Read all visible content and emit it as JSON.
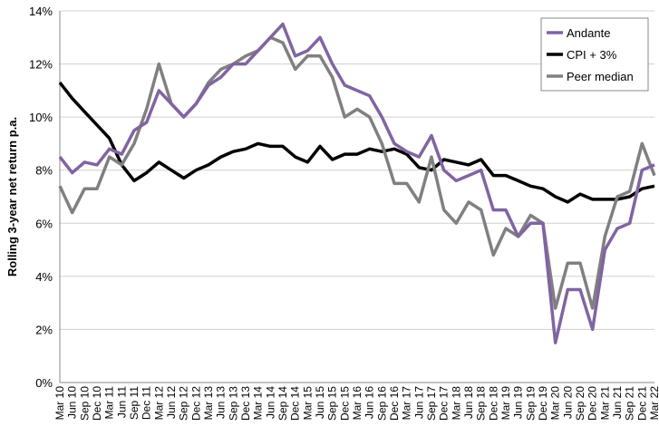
{
  "chart_data": {
    "type": "line",
    "y_label": "Rolling 3-year net return p.a.",
    "categories": [
      "Mar 10",
      "Jun 10",
      "Sep 10",
      "Dec 10",
      "Mar 11",
      "Jun 11",
      "Sep 11",
      "Dec 11",
      "Mar 12",
      "Jun 12",
      "Sep 12",
      "Dec 12",
      "Mar 13",
      "Jun 13",
      "Sep 13",
      "Dec 13",
      "Mar 14",
      "Jun 14",
      "Sep 14",
      "Dec 14",
      "Mar 15",
      "Jun 15",
      "Sep 15",
      "Dec 15",
      "Mar 16",
      "Jun 16",
      "Sep 16",
      "Dec 16",
      "Mar 17",
      "Jun 17",
      "Sep 17",
      "Dec 17",
      "Mar 18",
      "Jun 18",
      "Sep 18",
      "Dec 18",
      "Mar 19",
      "Jun 19",
      "Sep 19",
      "Dec 19",
      "Mar 20",
      "Jun 20",
      "Sep 20",
      "Dec 20",
      "Mar 21",
      "Jun 21",
      "Sep 21",
      "Dec 21",
      "Mar 22"
    ],
    "series": [
      {
        "name": "Andante",
        "color": "#8064a2",
        "values": [
          8.5,
          7.9,
          8.3,
          8.2,
          8.8,
          8.6,
          9.5,
          9.8,
          11.0,
          10.5,
          10.0,
          10.5,
          11.2,
          11.5,
          12.0,
          12.0,
          12.5,
          13.0,
          13.5,
          12.3,
          12.5,
          13.0,
          12.0,
          11.2,
          11.0,
          10.8,
          10.0,
          9.0,
          8.7,
          8.5,
          9.3,
          8.0,
          7.6,
          7.8,
          8.0,
          6.5,
          6.5,
          5.5,
          6.0,
          6.0,
          1.5,
          3.5,
          3.5,
          2.0,
          5.0,
          5.8,
          6.0,
          8.0,
          8.2
        ]
      },
      {
        "name": "CPI + 3%",
        "color": "#000000",
        "values": [
          11.3,
          10.7,
          10.2,
          9.7,
          9.2,
          8.2,
          7.6,
          7.9,
          8.3,
          8.0,
          7.7,
          8.0,
          8.2,
          8.5,
          8.7,
          8.8,
          9.0,
          8.9,
          8.9,
          8.5,
          8.3,
          8.9,
          8.4,
          8.6,
          8.6,
          8.8,
          8.7,
          8.8,
          8.6,
          8.1,
          8.0,
          8.4,
          8.3,
          8.2,
          8.4,
          7.8,
          7.8,
          7.6,
          7.4,
          7.3,
          7.0,
          6.8,
          7.1,
          6.9,
          6.9,
          6.9,
          7.0,
          7.3,
          7.4
        ]
      },
      {
        "name": "Peer median",
        "color": "#808080",
        "values": [
          7.4,
          6.4,
          7.3,
          7.3,
          8.5,
          8.2,
          9.0,
          10.3,
          12.0,
          10.5,
          10.0,
          10.5,
          11.3,
          11.8,
          12.0,
          12.3,
          12.5,
          13.0,
          12.8,
          11.8,
          12.3,
          12.3,
          11.5,
          10.0,
          10.3,
          10.0,
          9.0,
          7.5,
          7.5,
          6.8,
          8.5,
          6.5,
          6.0,
          6.8,
          6.5,
          4.8,
          5.8,
          5.5,
          6.3,
          6.0,
          2.8,
          4.5,
          4.5,
          2.8,
          5.5,
          7.0,
          7.2,
          9.0,
          7.8
        ]
      }
    ],
    "ylim": [
      0,
      14
    ],
    "yticks": [
      {
        "value": 0,
        "label": "0%"
      },
      {
        "value": 2,
        "label": "2%"
      },
      {
        "value": 4,
        "label": "4%"
      },
      {
        "value": 6,
        "label": "6%"
      },
      {
        "value": 8,
        "label": "8%"
      },
      {
        "value": 10,
        "label": "10%"
      },
      {
        "value": 12,
        "label": "12%"
      },
      {
        "value": 14,
        "label": "14%"
      }
    ],
    "grid": true,
    "legend": "top-right"
  }
}
